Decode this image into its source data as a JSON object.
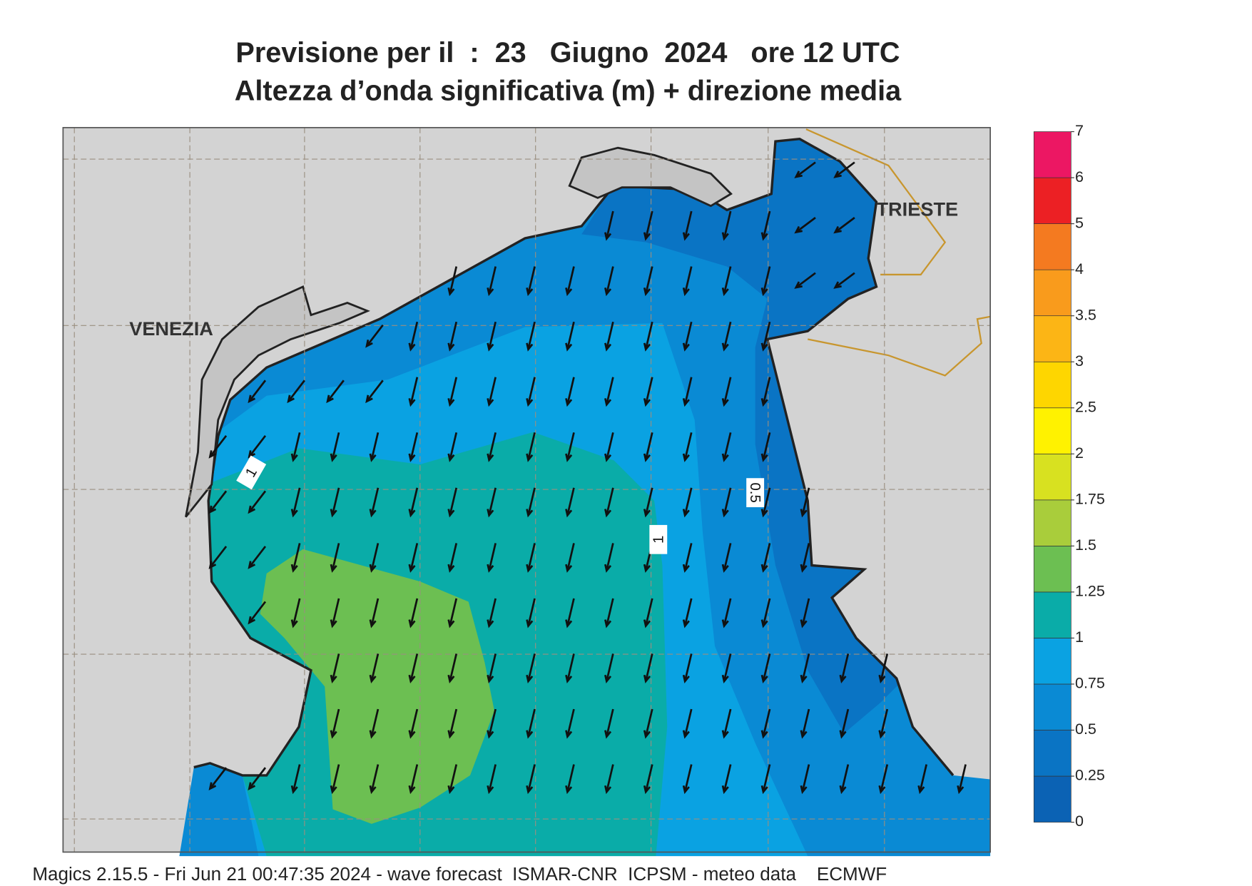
{
  "title": {
    "line1": "Previsione per il  :  23   Giugno  2024   ore 12 UTC",
    "line2": "Altezza d’onda significativa (m) + direzione media"
  },
  "legend": {
    "levels": [
      0,
      0.25,
      0.5,
      0.75,
      1,
      1.25,
      1.5,
      1.75,
      2,
      2.5,
      3,
      3.5,
      4,
      5,
      6,
      7
    ],
    "colors": [
      "#0b62b4",
      "#0a74c4",
      "#0a8ad4",
      "#0aa2e2",
      "#0aaca8",
      "#6cbf52",
      "#a9cd3b",
      "#d8e120",
      "#fff200",
      "#fed600",
      "#fcb515",
      "#f99b1c",
      "#f47a20",
      "#ec2024",
      "#ec1763"
    ]
  },
  "places": [
    {
      "label": "VENEZIA"
    },
    {
      "label": "TRIESTE"
    }
  ],
  "contour_labels": [
    "1",
    "1",
    "0.5"
  ],
  "footer": "Magics 2.15.5 - Fri Jun 21 00:47:35 2024 - wave forecast  ISMAR-CNR  ICPSM - meteo data    ECMWF"
}
